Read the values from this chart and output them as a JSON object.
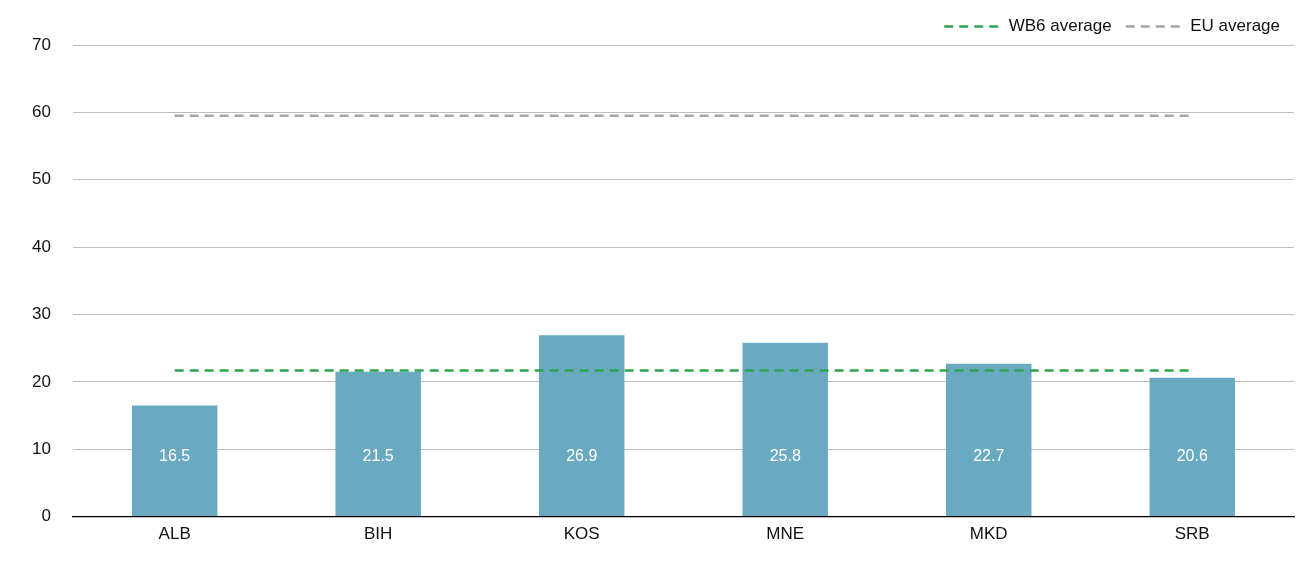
{
  "chart_data": {
    "type": "bar",
    "categories": [
      "ALB",
      "BIH",
      "KOS",
      "MNE",
      "MKD",
      "SRB"
    ],
    "series": [
      {
        "color": "#6aaac1",
        "values": [
          16.5,
          21.5,
          26.9,
          25.8,
          22.7,
          20.6
        ],
        "value_labels": [
          "16.5",
          "21.5",
          "26.9",
          "25.8",
          "22.7",
          "20.6"
        ]
      },
      {
        "type": "line",
        "name": "WB6 average",
        "color": "#2ea44f",
        "line_style": "dashed",
        "values": [
          21.7,
          21.7,
          21.7,
          21.7,
          21.7,
          21.7
        ]
      },
      {
        "type": "line",
        "name": "EU average",
        "color": "#a6a6a6",
        "line_style": "dashed",
        "values": [
          59.5,
          59.5,
          59.5,
          59.5,
          59.5,
          59.5
        ]
      }
    ],
    "ylim": [
      0,
      70
    ],
    "yticks": [
      0,
      10,
      20,
      30,
      40,
      50,
      60,
      70
    ],
    "grid": "y",
    "legend": "top right",
    "marker": "none"
  }
}
